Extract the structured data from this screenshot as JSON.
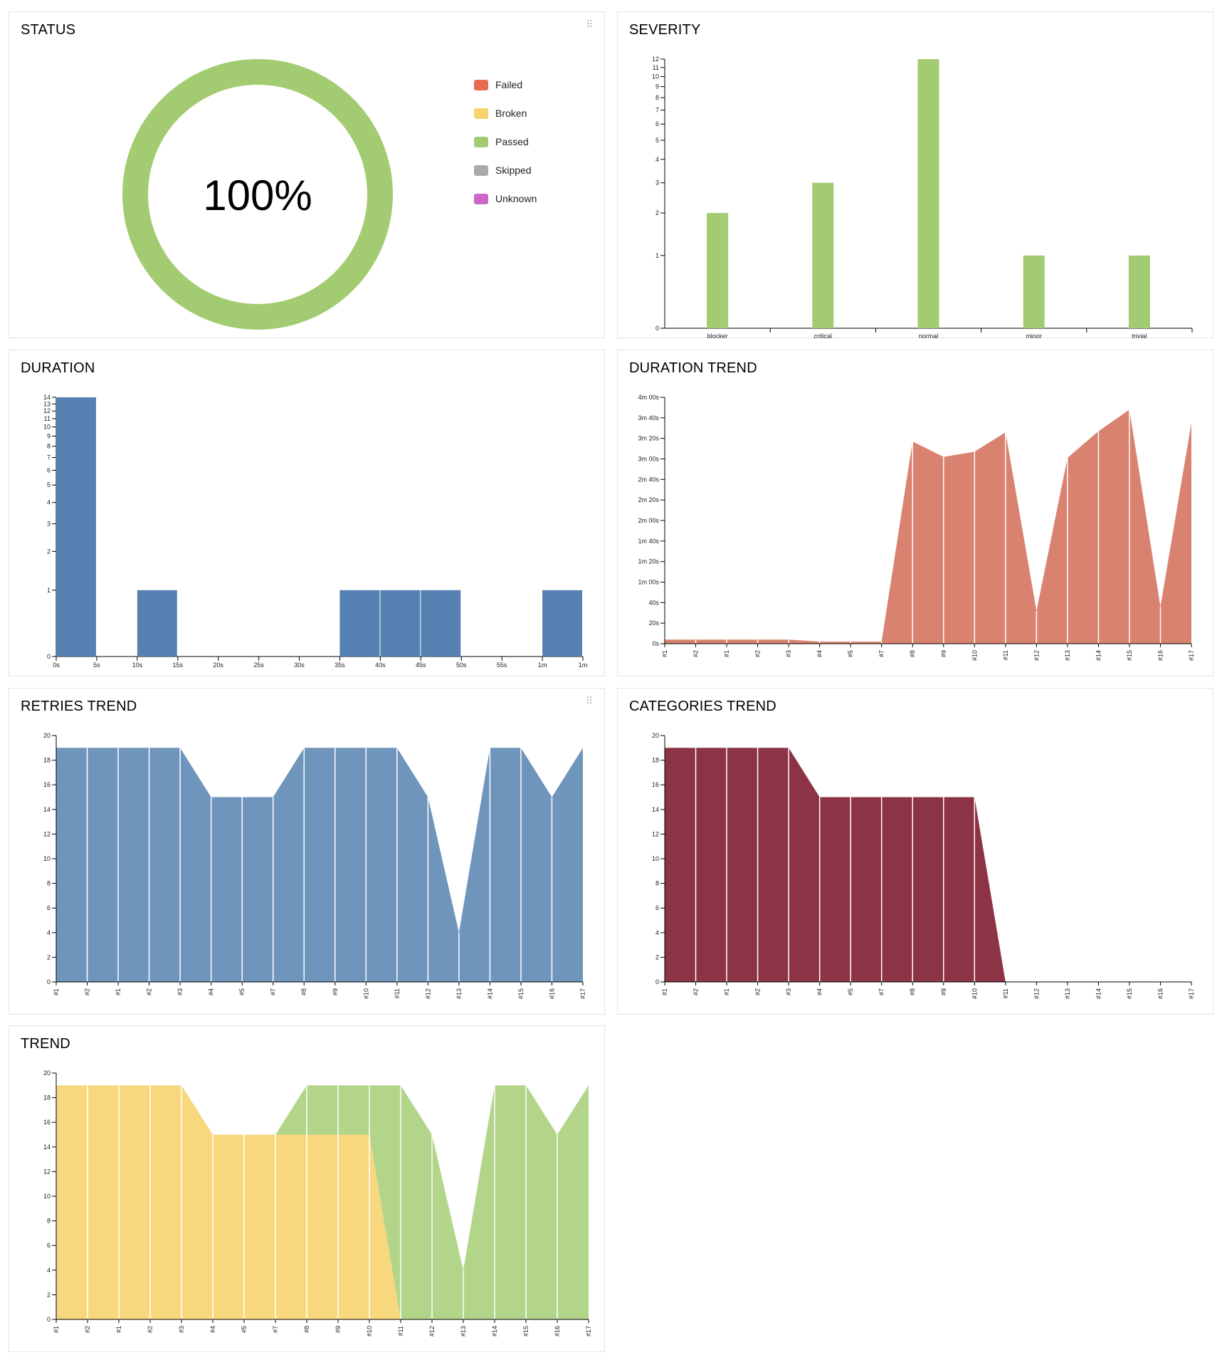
{
  "widgets": {
    "status": {
      "title": "STATUS"
    },
    "severity": {
      "title": "SEVERITY"
    },
    "duration": {
      "title": "DURATION"
    },
    "duration_trend": {
      "title": "DURATION TREND"
    },
    "retries_trend": {
      "title": "RETRIES TREND"
    },
    "categories_trend": {
      "title": "CATEGORIES TREND"
    },
    "trend": {
      "title": "TREND"
    }
  },
  "colors": {
    "failed": "#e96c52",
    "broken": "#f7d36e",
    "passed": "#a3cb71",
    "skipped": "#aaaaaa",
    "unknown": "#c968c6",
    "duration_bar": "#5580b1",
    "duration_trend": "#d9826f",
    "retries": "#6f95bd",
    "categories": "#8c3345",
    "trend_passed": "#b2d58a",
    "trend_broken": "#f8d87e"
  },
  "chart_data": [
    {
      "id": "status",
      "type": "pie",
      "title": "STATUS",
      "center_label": "100%",
      "legend": [
        {
          "name": "Failed",
          "color_key": "failed"
        },
        {
          "name": "Broken",
          "color_key": "broken"
        },
        {
          "name": "Passed",
          "color_key": "passed"
        },
        {
          "name": "Skipped",
          "color_key": "skipped"
        },
        {
          "name": "Unknown",
          "color_key": "unknown"
        }
      ],
      "values": [
        0,
        0,
        19,
        0,
        0
      ]
    },
    {
      "id": "severity",
      "type": "bar",
      "title": "SEVERITY",
      "categories": [
        "blocker",
        "critical",
        "normal",
        "minor",
        "trivial"
      ],
      "values": [
        2,
        3,
        12,
        1,
        1
      ],
      "yticks": [
        0,
        1,
        2,
        3,
        4,
        5,
        6,
        7,
        8,
        9,
        10,
        11,
        12
      ],
      "ylim": [
        0,
        12
      ],
      "yscale": "log"
    },
    {
      "id": "duration",
      "type": "bar",
      "title": "DURATION",
      "xticks": [
        "0s",
        "5s",
        "10s",
        "15s",
        "20s",
        "25s",
        "30s",
        "35s",
        "40s",
        "45s",
        "50s",
        "55s",
        "1m",
        "1m"
      ],
      "bins": [
        {
          "start": 0,
          "value": 14
        },
        {
          "start": 10,
          "value": 1
        },
        {
          "start": 35,
          "value": 1
        },
        {
          "start": 40,
          "value": 1
        },
        {
          "start": 45,
          "value": 1
        },
        {
          "start": 60,
          "value": 1
        }
      ],
      "bin_width": 5,
      "xlim": [
        0,
        65
      ],
      "yticks": [
        0,
        1,
        2,
        3,
        4,
        5,
        6,
        7,
        8,
        9,
        10,
        11,
        12,
        13,
        14
      ],
      "ylim": [
        0,
        14
      ],
      "yscale": "log"
    },
    {
      "id": "duration_trend",
      "type": "area",
      "title": "DURATION TREND",
      "x": [
        "#1",
        "#2",
        "#1",
        "#2",
        "#3",
        "#4",
        "#5",
        "#7",
        "#8",
        "#9",
        "#10",
        "#11",
        "#12",
        "#13",
        "#14",
        "#15",
        "#16",
        "#17"
      ],
      "values": [
        4,
        4,
        4,
        4,
        4,
        2,
        2,
        2,
        197,
        182,
        187,
        206,
        32,
        181,
        207,
        228,
        36,
        215
      ],
      "yticks": [
        "0s",
        "20s",
        "40s",
        "1m 00s",
        "1m 20s",
        "1m 40s",
        "2m 00s",
        "2m 20s",
        "2m 40s",
        "3m 00s",
        "3m 20s",
        "3m 40s",
        "4m 00s"
      ],
      "ylim": [
        0,
        240
      ]
    },
    {
      "id": "retries_trend",
      "type": "area",
      "title": "RETRIES TREND",
      "x": [
        "#1",
        "#2",
        "#1",
        "#2",
        "#3",
        "#4",
        "#5",
        "#7",
        "#8",
        "#9",
        "#10",
        "#11",
        "#12",
        "#13",
        "#14",
        "#15",
        "#16",
        "#17"
      ],
      "values": [
        19,
        19,
        19,
        19,
        19,
        15,
        15,
        15,
        19,
        19,
        19,
        19,
        15,
        4,
        19,
        19,
        15,
        19
      ],
      "yticks": [
        0,
        2,
        4,
        6,
        8,
        10,
        12,
        14,
        16,
        18,
        20
      ],
      "ylim": [
        0,
        20
      ]
    },
    {
      "id": "categories_trend",
      "type": "area",
      "title": "CATEGORIES TREND",
      "x": [
        "#1",
        "#2",
        "#1",
        "#2",
        "#3",
        "#4",
        "#5",
        "#7",
        "#8",
        "#9",
        "#10",
        "#11",
        "#12",
        "#13",
        "#14",
        "#15",
        "#16",
        "#17"
      ],
      "values": [
        19,
        19,
        19,
        19,
        19,
        15,
        15,
        15,
        15,
        15,
        15,
        0,
        0,
        0,
        0,
        0,
        0,
        0
      ],
      "yticks": [
        0,
        2,
        4,
        6,
        8,
        10,
        12,
        14,
        16,
        18,
        20
      ],
      "ylim": [
        0,
        20
      ]
    },
    {
      "id": "trend",
      "type": "area",
      "title": "TREND",
      "x": [
        "#1",
        "#2",
        "#1",
        "#2",
        "#3",
        "#4",
        "#5",
        "#7",
        "#8",
        "#9",
        "#10",
        "#11",
        "#12",
        "#13",
        "#14",
        "#15",
        "#16",
        "#17"
      ],
      "series": [
        {
          "name": "passed",
          "values": [
            0,
            0,
            0,
            0,
            0,
            0,
            0,
            0,
            4,
            4,
            4,
            19,
            15,
            4,
            19,
            19,
            15,
            19
          ]
        },
        {
          "name": "broken",
          "values": [
            19,
            19,
            19,
            19,
            19,
            15,
            15,
            15,
            15,
            15,
            15,
            0,
            0,
            0,
            0,
            0,
            0,
            0
          ]
        }
      ],
      "yticks": [
        0,
        2,
        4,
        6,
        8,
        10,
        12,
        14,
        16,
        18,
        20
      ],
      "ylim": [
        0,
        20
      ]
    }
  ]
}
